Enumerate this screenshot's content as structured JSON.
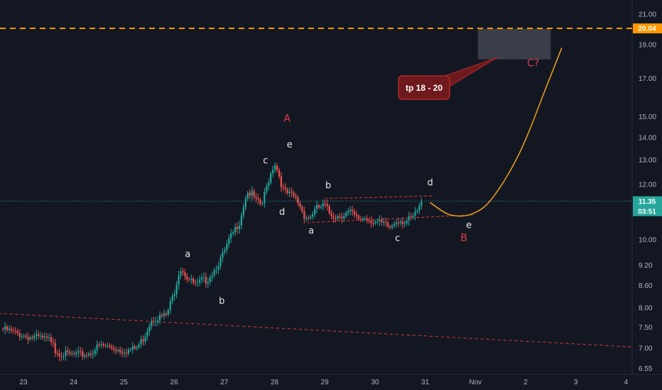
{
  "chart_data": {
    "type": "candlestick",
    "title": "",
    "xlabel": "",
    "ylabel": "",
    "y_scale": "log",
    "ylim": [
      6.5,
      22.0
    ],
    "y_ticks": [
      "21.00",
      "19.00",
      "17.00",
      "15.00",
      "14.00",
      "13.00",
      "12.00",
      "10.00",
      "9.20",
      "8.60",
      "8.00",
      "7.50",
      "7.00",
      "6.55"
    ],
    "y_tick_values": [
      21.0,
      19.0,
      17.0,
      15.0,
      14.0,
      13.0,
      12.0,
      10.0,
      9.2,
      8.6,
      8.0,
      7.5,
      7.0,
      6.55
    ],
    "x_ticks": [
      "23",
      "24",
      "25",
      "26",
      "27",
      "28",
      "29",
      "30",
      "31",
      "Nov",
      "2",
      "3",
      "4"
    ],
    "x_tick_values": [
      0,
      1,
      2,
      3,
      4,
      5,
      6,
      7,
      8,
      9,
      10,
      11,
      12
    ],
    "grid": false,
    "colors": {
      "up": "#26a69a",
      "down": "#ef5350",
      "projection": "#f0a020",
      "level": "#ff9800",
      "channel": "#e53935"
    },
    "price_series": {
      "x": [
        -0.45,
        -0.3,
        -0.15,
        0.0,
        0.15,
        0.3,
        0.45,
        0.6,
        0.62,
        0.75,
        0.9,
        1.05,
        1.2,
        1.35,
        1.5,
        1.65,
        1.8,
        1.95,
        2.1,
        2.25,
        2.4,
        2.55,
        2.7,
        2.85,
        3.0,
        3.05,
        3.1,
        3.15,
        3.25,
        3.35,
        3.45,
        3.55,
        3.65,
        3.75,
        3.9,
        4.0,
        4.1,
        4.2,
        4.3,
        4.45,
        4.55,
        4.65,
        4.75,
        4.8,
        4.9,
        5.0,
        5.05,
        5.1,
        5.15,
        5.2,
        5.3,
        5.4,
        5.5,
        5.6,
        5.7,
        5.75,
        5.85,
        6.0,
        6.1,
        6.2,
        6.35,
        6.5,
        6.65,
        6.8,
        6.95,
        7.1,
        7.2,
        7.3,
        7.45,
        7.6,
        7.75,
        7.85,
        7.95
      ],
      "y": [
        7.45,
        7.42,
        7.35,
        7.3,
        7.25,
        7.25,
        7.2,
        7.2,
        6.95,
        6.88,
        6.85,
        6.85,
        6.85,
        6.9,
        7.05,
        7.05,
        7.0,
        6.95,
        6.95,
        7.0,
        7.25,
        7.7,
        7.75,
        7.8,
        8.4,
        8.7,
        9.05,
        9.1,
        8.85,
        8.7,
        8.6,
        8.75,
        8.75,
        8.95,
        9.3,
        9.6,
        10.0,
        10.3,
        10.6,
        11.7,
        11.6,
        11.3,
        11.2,
        11.6,
        12.3,
        12.9,
        12.6,
        12.3,
        11.9,
        11.7,
        11.6,
        11.5,
        11.2,
        10.8,
        10.75,
        10.9,
        11.1,
        11.2,
        10.9,
        10.8,
        10.85,
        10.95,
        10.7,
        10.75,
        10.65,
        10.55,
        10.5,
        10.4,
        10.7,
        10.6,
        10.75,
        11.0,
        11.35
      ]
    },
    "projection_path": {
      "x": [
        8.1,
        8.5,
        8.95,
        9.35,
        9.9,
        10.45,
        10.72
      ],
      "y": [
        11.3,
        10.85,
        10.9,
        11.5,
        13.4,
        16.8,
        18.8
      ]
    },
    "lines": {
      "resistance_level": 20.04,
      "current_price": 11.35,
      "upper_channel": {
        "x1": 6.0,
        "y1": 11.45,
        "x2": 8.15,
        "y2": 11.55
      },
      "lower_channel": {
        "x1": 5.65,
        "y1": 10.58,
        "x2": 8.95,
        "y2": 10.85
      },
      "long_trend": {
        "x1": -0.5,
        "y1": 7.85,
        "x2": 12.1,
        "y2": 7.03
      }
    },
    "target_box": {
      "x1": 9.05,
      "x2": 10.5,
      "y1": 18.1,
      "y2": 20.0
    },
    "badges": {
      "level_label": "20.04",
      "price_label": "11.35",
      "timer_label": "03:51"
    },
    "annotations": {
      "tp_label": "tp 18 - 20",
      "waves": [
        {
          "text": "A",
          "x": 5.25,
          "y": 14.75,
          "style": "red"
        },
        {
          "text": "B",
          "x": 8.77,
          "y": 9.95,
          "style": "red"
        },
        {
          "text": "C?",
          "x": 10.15,
          "y": 17.7,
          "style": "red"
        },
        {
          "text": "a",
          "x": 3.27,
          "y": 9.45,
          "style": "white"
        },
        {
          "text": "b",
          "x": 3.95,
          "y": 8.1,
          "style": "white"
        },
        {
          "text": "c",
          "x": 4.82,
          "y": 12.85,
          "style": "white"
        },
        {
          "text": "d",
          "x": 5.15,
          "y": 10.85,
          "style": "white"
        },
        {
          "text": "e",
          "x": 5.3,
          "y": 13.55,
          "style": "white"
        },
        {
          "text": "a",
          "x": 5.73,
          "y": 10.2,
          "style": "white"
        },
        {
          "text": "b",
          "x": 6.07,
          "y": 11.85,
          "style": "white"
        },
        {
          "text": "c",
          "x": 7.45,
          "y": 9.95,
          "style": "white"
        },
        {
          "text": "d",
          "x": 8.1,
          "y": 11.95,
          "style": "white"
        },
        {
          "text": "e",
          "x": 8.87,
          "y": 10.4,
          "style": "white"
        }
      ]
    }
  }
}
